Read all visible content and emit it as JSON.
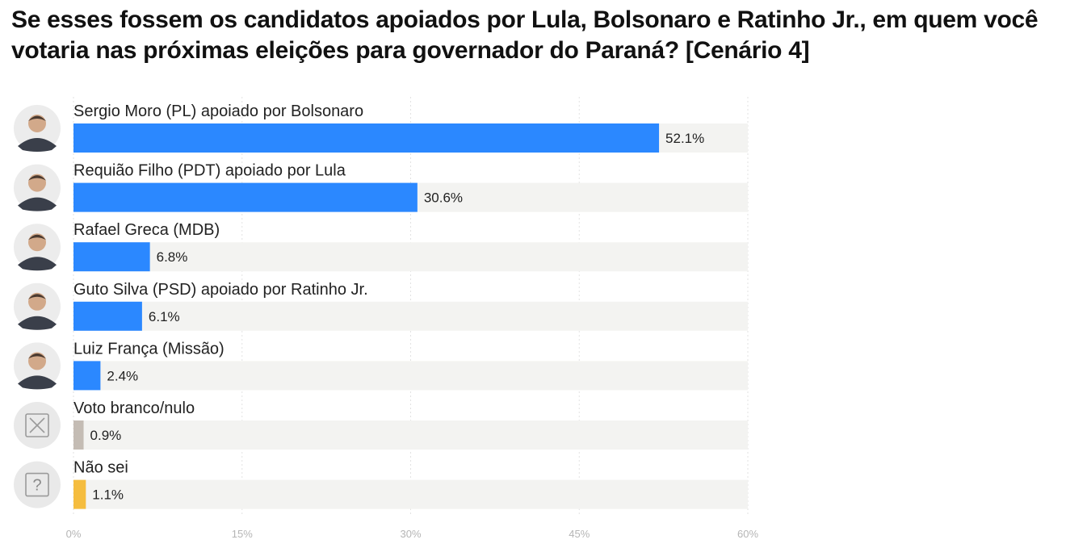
{
  "title": "Se esses fossem os candidatos apoiados por Lula, Bolsonaro e Ratinho Jr., em quem você votaria nas próximas eleições para governador do Paraná? [Cenário 4]",
  "chart_data": {
    "type": "bar",
    "orientation": "horizontal",
    "categories": [
      "Sergio Moro (PL) apoiado por Bolsonaro",
      "Requião Filho (PDT) apoiado por Lula",
      "Rafael Greca (MDB)",
      "Guto Silva (PSD) apoiado por Ratinho Jr.",
      "Luiz França (Missão)",
      "Voto branco/nulo",
      "Não sei"
    ],
    "values": [
      52.1,
      30.6,
      6.8,
      6.1,
      2.4,
      0.9,
      1.1
    ],
    "value_labels": [
      "52.1%",
      "30.6%",
      "6.8%",
      "6.1%",
      "2.4%",
      "0.9%",
      "1.1%"
    ],
    "bar_colors": [
      "#2b88ff",
      "#2b88ff",
      "#2b88ff",
      "#2b88ff",
      "#2b88ff",
      "#c4bcb4",
      "#f5bd3f"
    ],
    "avatar_icons": [
      "candidate-photo",
      "candidate-photo",
      "candidate-photo",
      "candidate-photo",
      "candidate-photo",
      "x-box-icon",
      "question-box-icon"
    ],
    "track_color": "#f3f3f1",
    "xlim": [
      0,
      60
    ],
    "xticks": [
      0,
      15,
      30,
      45,
      60
    ],
    "xtick_labels": [
      "0%",
      "15%",
      "30%",
      "45%",
      "60%"
    ],
    "grid": true
  }
}
